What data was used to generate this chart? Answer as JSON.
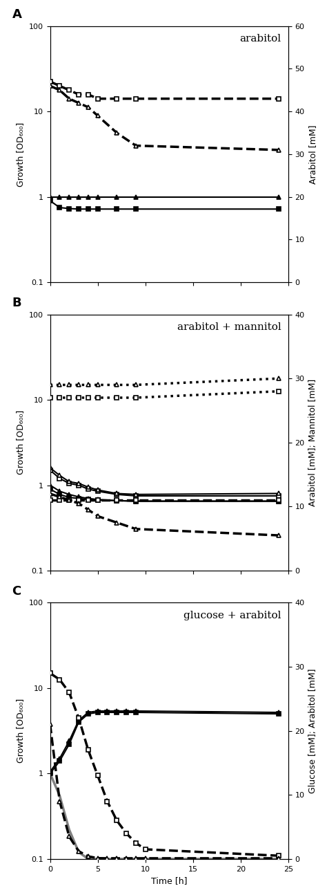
{
  "panel_A": {
    "title": "arabitol",
    "ylabel_left": "Growth [OD₆₀₀]",
    "ylabel_right": "Arabitol [mM]",
    "ylim_left": [
      0.1,
      100
    ],
    "ylim_right": [
      0,
      60
    ],
    "yticks_right": [
      0,
      10,
      20,
      30,
      40,
      50,
      60
    ],
    "lines": [
      {
        "x": [
          0,
          1,
          2,
          3,
          4,
          5,
          7,
          9,
          24
        ],
        "y": [
          0.9,
          0.75,
          0.73,
          0.72,
          0.72,
          0.72,
          0.72,
          0.72,
          0.72
        ],
        "style": "solid",
        "marker": "s",
        "filled": true,
        "color": "black",
        "axis": "left",
        "lw": 1.5
      },
      {
        "x": [
          0,
          1,
          2,
          3,
          4,
          5,
          7,
          9,
          24
        ],
        "y": [
          1.0,
          1.0,
          1.0,
          1.0,
          1.0,
          1.0,
          1.0,
          1.0,
          1.0
        ],
        "style": "solid",
        "marker": "^",
        "filled": true,
        "color": "black",
        "axis": "left",
        "lw": 1.5
      },
      {
        "x": [
          0,
          1,
          2,
          3,
          4,
          5,
          7,
          9,
          24
        ],
        "y": [
          47,
          46,
          45,
          44,
          44,
          43,
          43,
          43,
          43
        ],
        "style": "dashed",
        "marker": "s",
        "filled": false,
        "color": "black",
        "axis": "right",
        "lw": 2.5
      },
      {
        "x": [
          0,
          1,
          2,
          3,
          4,
          5,
          7,
          9,
          24
        ],
        "y": [
          46,
          45,
          43,
          42,
          41,
          39,
          35,
          32,
          31
        ],
        "style": "dashed",
        "marker": "^",
        "filled": false,
        "color": "black",
        "axis": "right",
        "lw": 2.5
      }
    ]
  },
  "panel_B": {
    "title": "arabitol + mannitol",
    "ylabel_left": "Growth [OD₆₀₀]",
    "ylabel_right": "Arabitol [mM]; Mannitol [mM]",
    "ylim_left": [
      0.1,
      100
    ],
    "ylim_right": [
      0,
      40
    ],
    "yticks_right": [
      0,
      10,
      20,
      30,
      40
    ],
    "lines": [
      {
        "x": [
          0,
          1,
          2,
          3,
          4,
          5,
          7,
          9,
          24
        ],
        "y": [
          0.9,
          0.78,
          0.72,
          0.7,
          0.68,
          0.67,
          0.66,
          0.65,
          0.65
        ],
        "style": "solid",
        "marker": "s",
        "filled": true,
        "color": "black",
        "axis": "left",
        "lw": 1.5
      },
      {
        "x": [
          0,
          1,
          2,
          3,
          4,
          5,
          7,
          9,
          24
        ],
        "y": [
          1.0,
          0.85,
          0.78,
          0.73,
          0.7,
          0.68,
          0.66,
          0.65,
          0.65
        ],
        "style": "solid",
        "marker": "^",
        "filled": true,
        "color": "black",
        "axis": "left",
        "lw": 1.5
      },
      {
        "x": [
          0,
          1,
          2,
          3,
          4,
          5,
          7,
          9,
          24
        ],
        "y": [
          1.5,
          1.2,
          1.05,
          1.0,
          0.9,
          0.85,
          0.78,
          0.75,
          0.75
        ],
        "style": "solid",
        "marker": "s",
        "filled": false,
        "color": "black",
        "axis": "left",
        "lw": 1.5
      },
      {
        "x": [
          0,
          1,
          2,
          3,
          4,
          5,
          7,
          9,
          24
        ],
        "y": [
          1.6,
          1.3,
          1.1,
          1.05,
          0.95,
          0.88,
          0.8,
          0.78,
          0.8
        ],
        "style": "solid",
        "marker": "^",
        "filled": false,
        "color": "black",
        "axis": "left",
        "lw": 1.5
      },
      {
        "x": [
          0,
          1,
          2,
          3,
          4,
          5,
          7,
          9,
          24
        ],
        "y": [
          27,
          27,
          27,
          27,
          27,
          27,
          27,
          27,
          28
        ],
        "style": "dotted",
        "marker": "s",
        "filled": false,
        "color": "black",
        "axis": "right",
        "lw": 2.5
      },
      {
        "x": [
          0,
          1,
          2,
          3,
          4,
          5,
          7,
          9,
          24
        ],
        "y": [
          29,
          29,
          29,
          29,
          29,
          29,
          29,
          29,
          30
        ],
        "style": "dotted",
        "marker": "^",
        "filled": false,
        "color": "black",
        "axis": "right",
        "lw": 2.5
      },
      {
        "x": [
          0,
          1,
          2,
          3,
          4,
          5,
          7,
          9,
          24
        ],
        "y": [
          11,
          11,
          11,
          11,
          11,
          11,
          11,
          11,
          11
        ],
        "style": "dashed",
        "marker": "s",
        "filled": false,
        "color": "black",
        "axis": "right",
        "lw": 2.5
      },
      {
        "x": [
          0,
          1,
          2,
          3,
          4,
          5,
          7,
          9,
          24
        ],
        "y": [
          12,
          11.5,
          11,
          10.5,
          9.5,
          8.5,
          7.5,
          6.5,
          5.5
        ],
        "style": "dashed",
        "marker": "^",
        "filled": false,
        "color": "black",
        "axis": "right",
        "lw": 2.5
      }
    ]
  },
  "panel_C": {
    "title": "glucose + arabitol",
    "ylabel_left": "Growth [OD₆₀₀]",
    "ylabel_right": "Glucose [mM]; Arabitol [mM]",
    "ylim_left": [
      0.1,
      100
    ],
    "ylim_right": [
      0,
      40
    ],
    "yticks_right": [
      0,
      10,
      20,
      30,
      40
    ],
    "lines": [
      {
        "x": [
          0,
          1,
          2,
          3,
          4,
          5,
          6,
          7,
          8,
          9,
          24
        ],
        "y": [
          1.0,
          1.4,
          2.2,
          4.0,
          5.0,
          5.2,
          5.2,
          5.2,
          5.2,
          5.2,
          5.0
        ],
        "style": "solid",
        "marker": "s",
        "filled": true,
        "color": "black",
        "axis": "left",
        "lw": 1.5
      },
      {
        "x": [
          0,
          1,
          2,
          3,
          4,
          5,
          6,
          7,
          8,
          9,
          24
        ],
        "y": [
          1.05,
          1.5,
          2.4,
          4.2,
          5.2,
          5.4,
          5.4,
          5.4,
          5.4,
          5.4,
          5.2
        ],
        "style": "solid",
        "marker": "^",
        "filled": true,
        "color": "black",
        "axis": "left",
        "lw": 1.5
      },
      {
        "x": [
          0,
          1,
          2,
          3,
          4,
          5,
          6,
          7,
          8,
          10,
          24
        ],
        "y": [
          1.0,
          0.55,
          0.22,
          0.12,
          0.1,
          0.1,
          0.1,
          0.1,
          0.1,
          0.1,
          0.1
        ],
        "style": "solid",
        "marker": null,
        "filled": false,
        "color": "#808080",
        "axis": "left",
        "lw": 2.5
      },
      {
        "x": [
          0,
          1,
          2,
          3,
          4,
          5,
          6,
          7,
          8,
          9,
          10,
          24
        ],
        "y": [
          29,
          28,
          26,
          22,
          17,
          13,
          9,
          6,
          4,
          2.5,
          1.5,
          0.5
        ],
        "style": "dashed",
        "marker": "s",
        "filled": false,
        "color": "black",
        "axis": "right",
        "lw": 2.5
      },
      {
        "x": [
          0,
          1,
          2,
          3,
          4,
          5,
          6,
          7,
          8,
          9,
          10,
          24
        ],
        "y": [
          21,
          9,
          3.5,
          1.2,
          0.4,
          0.12,
          0.1,
          0.1,
          0.1,
          0.1,
          0.1,
          0.1
        ],
        "style": "dashed",
        "marker": "^",
        "filled": false,
        "color": "black",
        "axis": "right",
        "lw": 2.5
      }
    ]
  },
  "xlabel": "Time [h]",
  "xlim": [
    0,
    25
  ],
  "xticks": [
    0,
    5,
    10,
    15,
    20,
    25
  ],
  "background_color": "white",
  "label_fontsize": 9,
  "title_fontsize": 11,
  "tick_fontsize": 8,
  "marker_size": 5,
  "line_width": 1.5
}
